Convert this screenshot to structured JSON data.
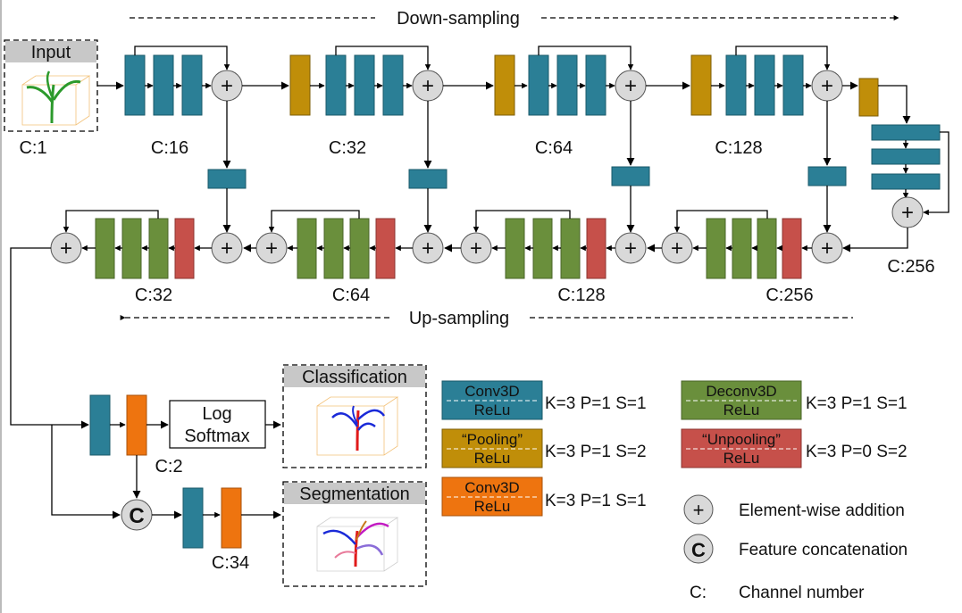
{
  "colors": {
    "conv": "#2b7f96",
    "pool": "#c08e09",
    "deconv": "#6a8f3c",
    "unpool": "#c6504a",
    "orange": "#ee740f",
    "node": "#d9d9d9"
  },
  "headers": {
    "down": "Down-sampling",
    "up": "Up-sampling"
  },
  "panels": {
    "input": "Input",
    "classification": "Classification",
    "segmentation": "Segmentation"
  },
  "channels": {
    "in": "C:1",
    "e1": "C:16",
    "e2": "C:32",
    "e3": "C:64",
    "e4": "C:128",
    "bottom": "C:256",
    "d4": "C:256",
    "d3": "C:128",
    "d2": "C:64",
    "d1": "C:32",
    "cls": "C:2",
    "seg": "C:34"
  },
  "softmax": {
    "line1": "Log",
    "line2": "Softmax"
  },
  "symbols": {
    "plus": "+",
    "concat": "C"
  },
  "legend": {
    "conv": {
      "line1": "Conv3D",
      "line2": "ReLu",
      "params": "K=3 P=1 S=1"
    },
    "pool": {
      "line1": "“Pooling”",
      "line2": "ReLu",
      "params": "K=3 P=1 S=2"
    },
    "conv_out": {
      "line1": "Conv3D",
      "line2": "ReLu",
      "params": "K=3 P=1 S=1"
    },
    "deconv": {
      "line1": "Deconv3D",
      "line2": "ReLu",
      "params": "K=3 P=1 S=1"
    },
    "unpool": {
      "line1": "“Unpooling”",
      "line2": "ReLu",
      "params": "K=3 P=0 S=2"
    },
    "add": "Element-wise addition",
    "concat": "Feature concatenation",
    "channel_sym": "C:",
    "channel": "Channel number"
  }
}
